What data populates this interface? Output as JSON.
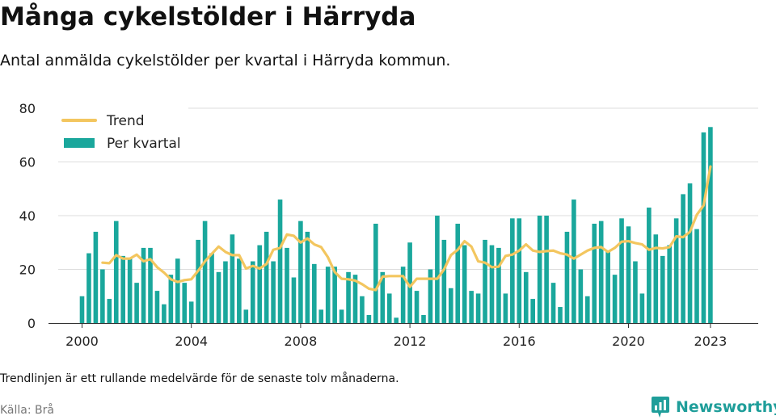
{
  "header": {
    "title": "Många cykelstölder i Härryda",
    "subtitle": "Antal anmälda cykelstölder per kvartal i Härryda kommun."
  },
  "footer": {
    "note": "Trendlinjen är ett rullande medelvärde för de senaste tolv månaderna.",
    "source": "Källa: Brå",
    "brand": "Newsworthy"
  },
  "colors": {
    "bar": "#1aa79c",
    "trend": "#f3c65f",
    "grid": "#dddddd",
    "brand": "#1f9e9a"
  },
  "chart_data": {
    "type": "bar",
    "title": "Många cykelstölder i Härryda",
    "xlabel": "",
    "ylabel": "",
    "ylim": [
      0,
      80
    ],
    "yticks": [
      0,
      20,
      40,
      60,
      80
    ],
    "xticks": [
      "2000",
      "2004",
      "2008",
      "2012",
      "2016",
      "2020",
      "2023"
    ],
    "legend": {
      "position": "top-left",
      "entries": [
        "Trend",
        "Per kvartal"
      ]
    },
    "grid": "horizontal",
    "start": {
      "year": 2000,
      "quarter": 1
    },
    "series": [
      {
        "name": "Per kvartal",
        "type": "bar",
        "values": [
          10,
          26,
          34,
          20,
          9,
          38,
          25,
          24,
          15,
          28,
          28,
          12,
          7,
          18,
          24,
          15,
          8,
          31,
          38,
          26,
          19,
          23,
          33,
          24,
          5,
          23,
          29,
          34,
          23,
          46,
          28,
          17,
          38,
          34,
          22,
          5,
          21,
          21,
          5,
          19,
          18,
          10,
          3,
          37,
          19,
          11,
          2,
          21,
          30,
          12,
          3,
          20,
          40,
          31,
          13,
          37,
          29,
          12,
          11,
          31,
          29,
          28,
          11,
          39,
          39,
          19,
          9,
          40,
          40,
          15,
          6,
          34,
          46,
          20,
          10,
          37,
          38,
          27,
          18,
          39,
          36,
          23,
          11,
          43,
          33,
          25,
          29,
          39,
          48,
          52,
          35,
          71,
          73
        ]
      },
      {
        "name": "Trend",
        "type": "line",
        "values": [
          null,
          null,
          null,
          22.5,
          22.3,
          25.3,
          24.0,
          24.0,
          25.5,
          23.0,
          23.8,
          20.8,
          18.8,
          16.3,
          15.3,
          16.0,
          16.3,
          19.5,
          23.0,
          25.8,
          28.5,
          26.5,
          25.3,
          25.3,
          20.3,
          21.3,
          20.3,
          22.0,
          27.3,
          28.0,
          33.0,
          32.5,
          30.0,
          31.5,
          29.3,
          28.3,
          24.5,
          19.0,
          16.5,
          16.3,
          15.8,
          14.5,
          12.8,
          12.3,
          17.3,
          17.5,
          17.5,
          17.5,
          13.5,
          16.5,
          16.5,
          16.5,
          16.5,
          20.0,
          25.3,
          27.3,
          30.5,
          28.5,
          23.0,
          22.5,
          20.8,
          21.0,
          25.0,
          25.5,
          27.0,
          29.3,
          27.0,
          26.5,
          26.8,
          27.0,
          26.0,
          25.5,
          24.0,
          25.5,
          27.0,
          28.0,
          28.3,
          26.5,
          28.0,
          30.3,
          30.5,
          29.8,
          29.3,
          27.3,
          28.0,
          27.8,
          28.3,
          32.3,
          32.0,
          34.0,
          40.3,
          43.8,
          58.3
        ]
      }
    ]
  }
}
